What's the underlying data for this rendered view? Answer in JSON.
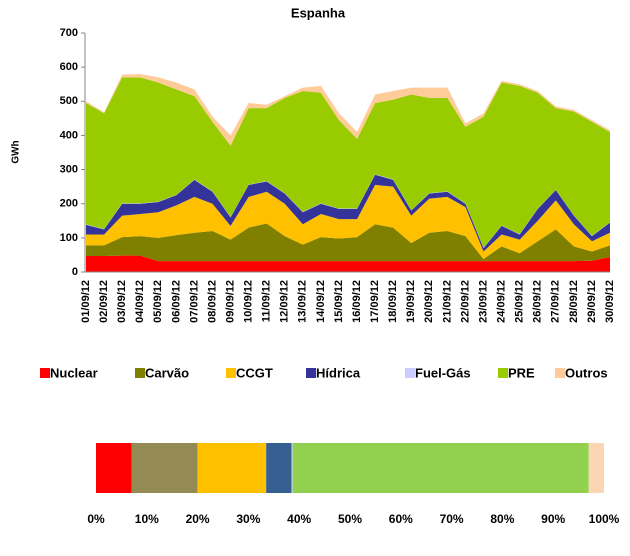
{
  "chart_data": [
    {
      "type": "stacked_area",
      "title": "Espanha",
      "ylabel": "GWh",
      "categories": [
        "01/09/12",
        "02/09/12",
        "03/09/12",
        "04/09/12",
        "05/09/12",
        "06/09/12",
        "07/09/12",
        "08/09/12",
        "09/09/12",
        "10/09/12",
        "11/09/12",
        "12/09/12",
        "13/09/12",
        "14/09/12",
        "15/09/12",
        "16/09/12",
        "17/09/12",
        "18/09/12",
        "19/09/12",
        "20/09/12",
        "21/09/12",
        "22/09/12",
        "23/09/12",
        "24/09/12",
        "25/09/12",
        "26/09/12",
        "27/09/12",
        "28/09/12",
        "29/09/12",
        "30/09/12"
      ],
      "series": [
        {
          "name": "Nuclear",
          "color": "#ff0000",
          "values": [
            47,
            47,
            48,
            48,
            32,
            32,
            32,
            32,
            32,
            32,
            32,
            32,
            32,
            32,
            32,
            32,
            32,
            32,
            32,
            32,
            32,
            32,
            32,
            32,
            32,
            32,
            32,
            32,
            33,
            44
          ]
        },
        {
          "name": "Carvão",
          "color": "#808000",
          "values": [
            31,
            31,
            54,
            57,
            68,
            76,
            83,
            88,
            63,
            98,
            110,
            73,
            48,
            70,
            66,
            70,
            108,
            98,
            53,
            83,
            88,
            73,
            6,
            43,
            23,
            58,
            93,
            43,
            27,
            34
          ]
        },
        {
          "name": "CCGT",
          "color": "#ffc000",
          "values": [
            32,
            32,
            63,
            65,
            75,
            87,
            105,
            80,
            40,
            90,
            93,
            95,
            60,
            68,
            57,
            53,
            115,
            120,
            80,
            100,
            100,
            85,
            22,
            35,
            40,
            60,
            85,
            65,
            30,
            37
          ]
        },
        {
          "name": "Hídrica",
          "color": "#333399",
          "values": [
            28,
            15,
            35,
            30,
            30,
            30,
            50,
            35,
            25,
            35,
            30,
            30,
            35,
            30,
            30,
            30,
            30,
            20,
            15,
            15,
            15,
            10,
            10,
            25,
            15,
            35,
            30,
            25,
            15,
            30
          ]
        },
        {
          "name": "Fuel-Gás",
          "color": "#ccccff",
          "values": [
            1,
            1,
            1,
            1,
            1,
            1,
            1,
            1,
            1,
            1,
            1,
            1,
            1,
            1,
            1,
            1,
            1,
            1,
            1,
            1,
            1,
            1,
            1,
            1,
            1,
            1,
            1,
            1,
            1,
            1
          ]
        },
        {
          "name": "PRE",
          "color": "#99cc00",
          "values": [
            356,
            339,
            369,
            369,
            349,
            309,
            244,
            204,
            209,
            224,
            214,
            279,
            354,
            324,
            259,
            204,
            209,
            234,
            339,
            279,
            274,
            224,
            384,
            419,
            434,
            339,
            239,
            304,
            334,
            264
          ]
        },
        {
          "name": "Outros",
          "color": "#ffcc99",
          "values": [
            5,
            3,
            8,
            10,
            15,
            20,
            20,
            15,
            30,
            15,
            10,
            5,
            10,
            20,
            20,
            20,
            25,
            25,
            20,
            30,
            30,
            10,
            10,
            5,
            5,
            5,
            5,
            5,
            5,
            5
          ]
        }
      ],
      "ylim": [
        0,
        700
      ],
      "yticks": [
        0,
        100,
        200,
        300,
        400,
        500,
        600,
        700
      ]
    },
    {
      "type": "stacked_bar_100",
      "values": [
        7,
        13,
        13.5,
        5,
        0.2,
        58.3,
        3
      ],
      "colors": [
        "#ff0000",
        "#948a54",
        "#ffc000",
        "#376092",
        "#ccccff",
        "#92d050",
        "#fcd5b4"
      ],
      "xlim": [
        0,
        100
      ],
      "xticks": [
        {
          "value": 0,
          "label": "0%"
        },
        {
          "value": 10,
          "label": "10%"
        },
        {
          "value": 20,
          "label": "20%"
        },
        {
          "value": 30,
          "label": "30%"
        },
        {
          "value": 40,
          "label": "40%"
        },
        {
          "value": 50,
          "label": "50%"
        },
        {
          "value": 60,
          "label": "60%"
        },
        {
          "value": 70,
          "label": "70%"
        },
        {
          "value": 80,
          "label": "80%"
        },
        {
          "value": 90,
          "label": "90%"
        },
        {
          "value": 100,
          "label": "100%"
        }
      ]
    }
  ]
}
